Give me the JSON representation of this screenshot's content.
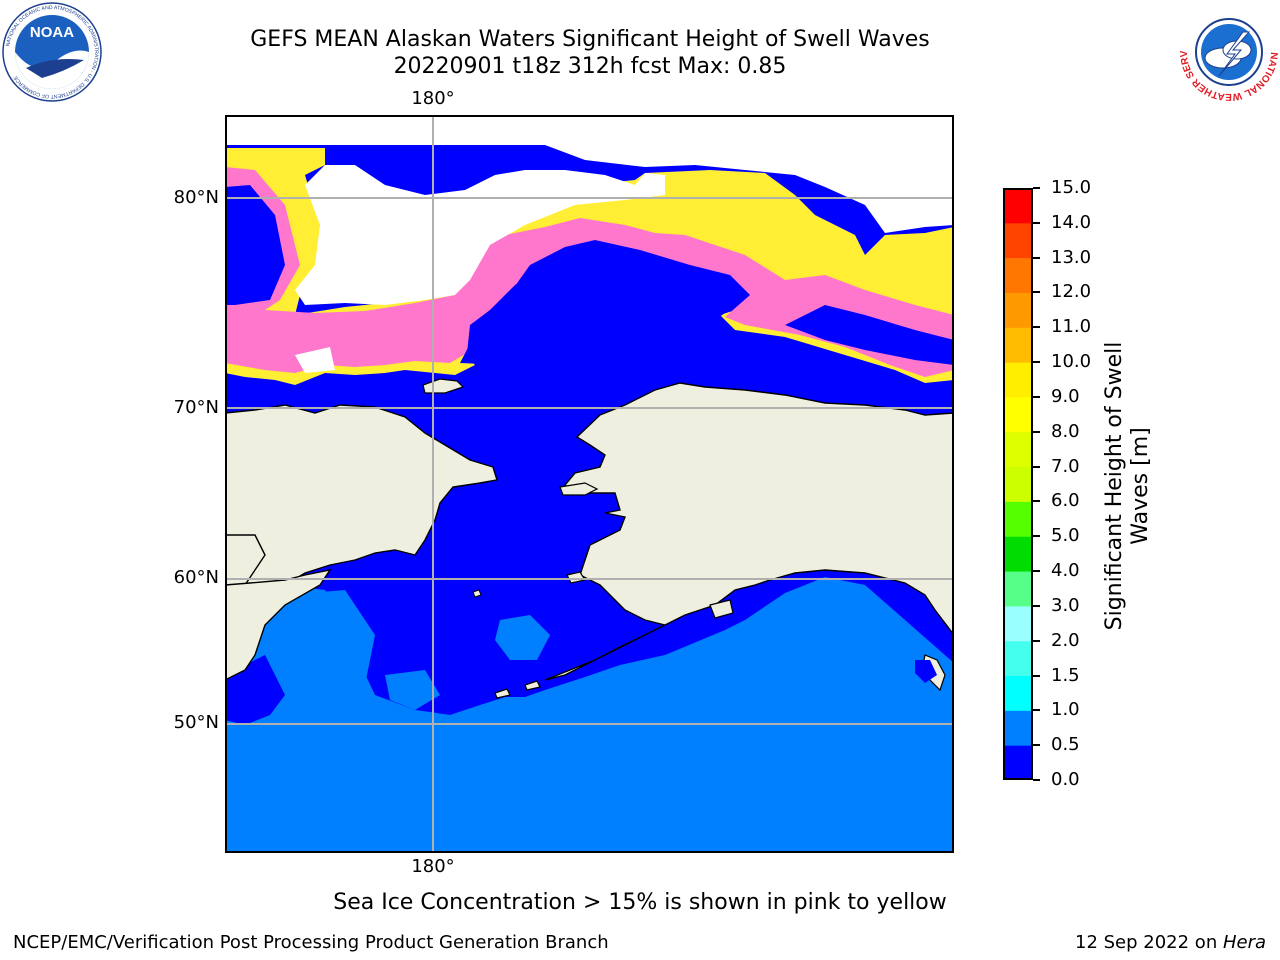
{
  "title": {
    "line1": "GEFS MEAN Alaskan Waters Significant Height of Swell Waves",
    "line2": "20220901 t18z 312h fcst   Max: 0.85"
  },
  "map": {
    "lon_labels": [
      "180°",
      "180°"
    ],
    "lat_labels": [
      "80°N",
      "70°N",
      "60°N",
      "50°N"
    ],
    "colors": {
      "ocean_low": "#0000ff",
      "ocean_mid": "#0080ff",
      "land": "#efefdf",
      "ice_pink": "#ff77cc",
      "ice_orange": "#ffaa55",
      "ice_yellow": "#ffee33",
      "grid": "#b0b0b0"
    }
  },
  "colorbar": {
    "title_line1": "Significant Height of Swell",
    "title_line2": "Waves [m]",
    "ticks": [
      "0.0",
      "0.5",
      "1.0",
      "1.5",
      "2.0",
      "3.0",
      "4.0",
      "5.0",
      "6.0",
      "7.0",
      "8.0",
      "9.0",
      "10.0",
      "11.0",
      "12.0",
      "13.0",
      "14.0",
      "15.0"
    ],
    "colors": [
      "#0000ff",
      "#0080ff",
      "#00ffff",
      "#44ffee",
      "#99ffff",
      "#55ff88",
      "#00dd00",
      "#55ff00",
      "#ccff00",
      "#ddff00",
      "#ffff00",
      "#ffee00",
      "#ffbb00",
      "#ff9900",
      "#ff7700",
      "#ff4400",
      "#ff0000"
    ]
  },
  "caption": "Sea Ice Concentration > 15% is shown in pink to yellow",
  "footer": {
    "left": "NCEP/EMC/Verification Post Processing Product Generation Branch",
    "date": "12 Sep 2022 on ",
    "host": "Hera"
  },
  "logos": {
    "noaa_text": "NOAA",
    "noaa_ring": "NATIONAL OCEANIC AND ATMOSPHERIC ADMINISTRATION · U.S. DEPARTMENT OF COMMERCE",
    "nws_ring": "NATIONAL WEATHER SERVICE"
  }
}
